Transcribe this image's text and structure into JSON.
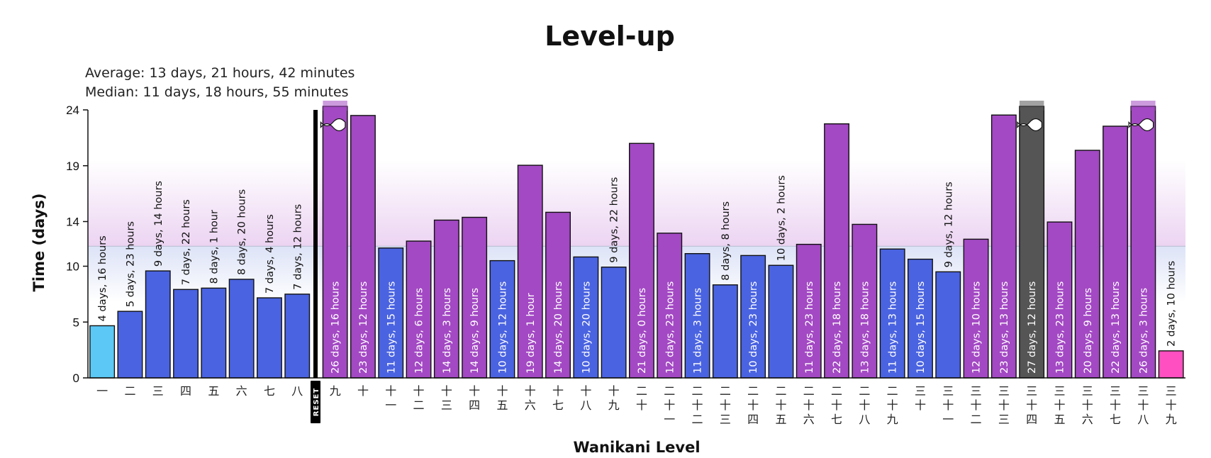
{
  "chart_data": {
    "type": "bar",
    "title": "Level-up",
    "stats": {
      "average": "Average: 13 days, 21 hours, 42 minutes",
      "median": "Median: 11 days, 18 hours, 55 minutes"
    },
    "xlabel": "Wanikani Level",
    "ylabel": "Time (days)",
    "ylim": [
      0,
      24
    ],
    "yticks": [
      0,
      5,
      10,
      14,
      19,
      24
    ],
    "grid": false,
    "reset_label": "RESET",
    "median_days": 11.79,
    "average_days": 13.9,
    "colors": {
      "fast": "#5bc8f5",
      "normal": "#4a63e0",
      "slow": "#a349c3",
      "longest": "#555555",
      "current": "#ff4fc0",
      "reset": "#000000"
    },
    "levels": [
      {
        "level": "一",
        "days": 4.67,
        "label": "4 days, 16 hours",
        "kind": "fast"
      },
      {
        "level": "二",
        "days": 5.96,
        "label": "5 days, 23 hours",
        "kind": "normal"
      },
      {
        "level": "三",
        "days": 9.58,
        "label": "9 days, 14 hours",
        "kind": "normal"
      },
      {
        "level": "四",
        "days": 7.92,
        "label": "7 days, 22 hours",
        "kind": "normal"
      },
      {
        "level": "五",
        "days": 8.04,
        "label": "8 days, 1 hour",
        "kind": "normal"
      },
      {
        "level": "六",
        "days": 8.83,
        "label": "8 days, 20 hours",
        "kind": "normal"
      },
      {
        "level": "七",
        "days": 7.17,
        "label": "7 days, 4 hours",
        "kind": "normal"
      },
      {
        "level": "八",
        "days": 7.5,
        "label": "7 days, 12 hours",
        "kind": "normal"
      },
      {
        "level": "九",
        "days": 26.67,
        "label": "26 days, 16 hours",
        "kind": "slow"
      },
      {
        "level": "十",
        "days": 23.5,
        "label": "23 days, 12 hours",
        "kind": "slow"
      },
      {
        "level": "十一",
        "days": 11.63,
        "label": "11 days, 15 hours",
        "kind": "normal"
      },
      {
        "level": "十二",
        "days": 12.25,
        "label": "12 days, 6 hours",
        "kind": "slow"
      },
      {
        "level": "十三",
        "days": 14.13,
        "label": "14 days, 3 hours",
        "kind": "slow"
      },
      {
        "level": "十四",
        "days": 14.38,
        "label": "14 days, 9 hours",
        "kind": "slow"
      },
      {
        "level": "十五",
        "days": 10.5,
        "label": "10 days, 12 hours",
        "kind": "normal"
      },
      {
        "level": "十六",
        "days": 19.04,
        "label": "19 days, 1 hour",
        "kind": "slow"
      },
      {
        "level": "十七",
        "days": 14.83,
        "label": "14 days, 20 hours",
        "kind": "slow"
      },
      {
        "level": "十八",
        "days": 10.83,
        "label": "10 days, 20 hours",
        "kind": "normal"
      },
      {
        "level": "十九",
        "days": 9.92,
        "label": "9 days, 22 hours",
        "kind": "normal"
      },
      {
        "level": "二十",
        "days": 21.0,
        "label": "21 days, 0 hours",
        "kind": "slow"
      },
      {
        "level": "二十一",
        "days": 12.96,
        "label": "12 days, 23 hours",
        "kind": "slow"
      },
      {
        "level": "二十二",
        "days": 11.13,
        "label": "11 days, 3 hours",
        "kind": "normal"
      },
      {
        "level": "二十三",
        "days": 8.33,
        "label": "8 days, 8 hours",
        "kind": "normal"
      },
      {
        "level": "二十四",
        "days": 10.96,
        "label": "10 days, 23 hours",
        "kind": "normal"
      },
      {
        "level": "二十五",
        "days": 10.08,
        "label": "10 days, 2 hours",
        "kind": "normal"
      },
      {
        "level": "二十六",
        "days": 11.96,
        "label": "11 days, 23 hours",
        "kind": "slow"
      },
      {
        "level": "二十七",
        "days": 22.75,
        "label": "22 days, 18 hours",
        "kind": "slow"
      },
      {
        "level": "二十八",
        "days": 13.75,
        "label": "13 days, 18 hours",
        "kind": "slow"
      },
      {
        "level": "二十九",
        "days": 11.54,
        "label": "11 days, 13 hours",
        "kind": "normal"
      },
      {
        "level": "三十",
        "days": 10.63,
        "label": "10 days, 15 hours",
        "kind": "normal"
      },
      {
        "level": "三十一",
        "days": 9.5,
        "label": "9 days, 12 hours",
        "kind": "normal"
      },
      {
        "level": "三十二",
        "days": 12.42,
        "label": "12 days, 10 hours",
        "kind": "slow"
      },
      {
        "level": "三十三",
        "days": 23.54,
        "label": "23 days, 13 hours",
        "kind": "slow"
      },
      {
        "level": "三十四",
        "days": 27.5,
        "label": "27 days, 12 hours",
        "kind": "longest"
      },
      {
        "level": "三十五",
        "days": 13.96,
        "label": "13 days, 23 hours",
        "kind": "slow"
      },
      {
        "level": "三十六",
        "days": 20.38,
        "label": "20 days, 9 hours",
        "kind": "slow"
      },
      {
        "level": "三十七",
        "days": 22.54,
        "label": "22 days, 13 hours",
        "kind": "slow"
      },
      {
        "level": "三十八",
        "days": 26.13,
        "label": "26 days, 3 hours",
        "kind": "slow"
      },
      {
        "level": "三十九",
        "days": 2.42,
        "label": "2 days, 10 hours",
        "kind": "current"
      }
    ]
  }
}
